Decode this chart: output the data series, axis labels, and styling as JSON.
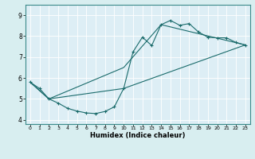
{
  "xlabel": "Humidex (Indice chaleur)",
  "xlim": [
    -0.5,
    23.5
  ],
  "ylim": [
    3.8,
    9.5
  ],
  "xticks": [
    0,
    1,
    2,
    3,
    4,
    5,
    6,
    7,
    8,
    9,
    10,
    11,
    12,
    13,
    14,
    15,
    16,
    17,
    18,
    19,
    20,
    21,
    22,
    23
  ],
  "yticks": [
    4,
    5,
    6,
    7,
    8,
    9
  ],
  "bg_color": "#d8eef0",
  "plot_bg_color": "#ddeef5",
  "grid_color": "#ffffff",
  "line_color": "#1a6b6b",
  "line1_x": [
    0,
    1,
    2,
    3,
    4,
    5,
    6,
    7,
    8,
    9,
    10,
    11,
    12,
    13,
    14,
    15,
    16,
    17,
    18,
    19,
    20,
    21,
    22,
    23
  ],
  "line1_y": [
    5.8,
    5.5,
    5.0,
    4.8,
    4.55,
    4.42,
    4.33,
    4.3,
    4.4,
    4.62,
    5.5,
    7.25,
    7.95,
    7.55,
    8.55,
    8.75,
    8.52,
    8.6,
    8.2,
    7.95,
    7.92,
    7.92,
    7.7,
    7.58
  ],
  "line2_x": [
    0,
    2,
    10,
    23
  ],
  "line2_y": [
    5.8,
    5.0,
    5.5,
    7.58
  ],
  "line3_x": [
    0,
    2,
    10,
    14,
    23
  ],
  "line3_y": [
    5.8,
    5.0,
    6.5,
    8.55,
    7.58
  ]
}
